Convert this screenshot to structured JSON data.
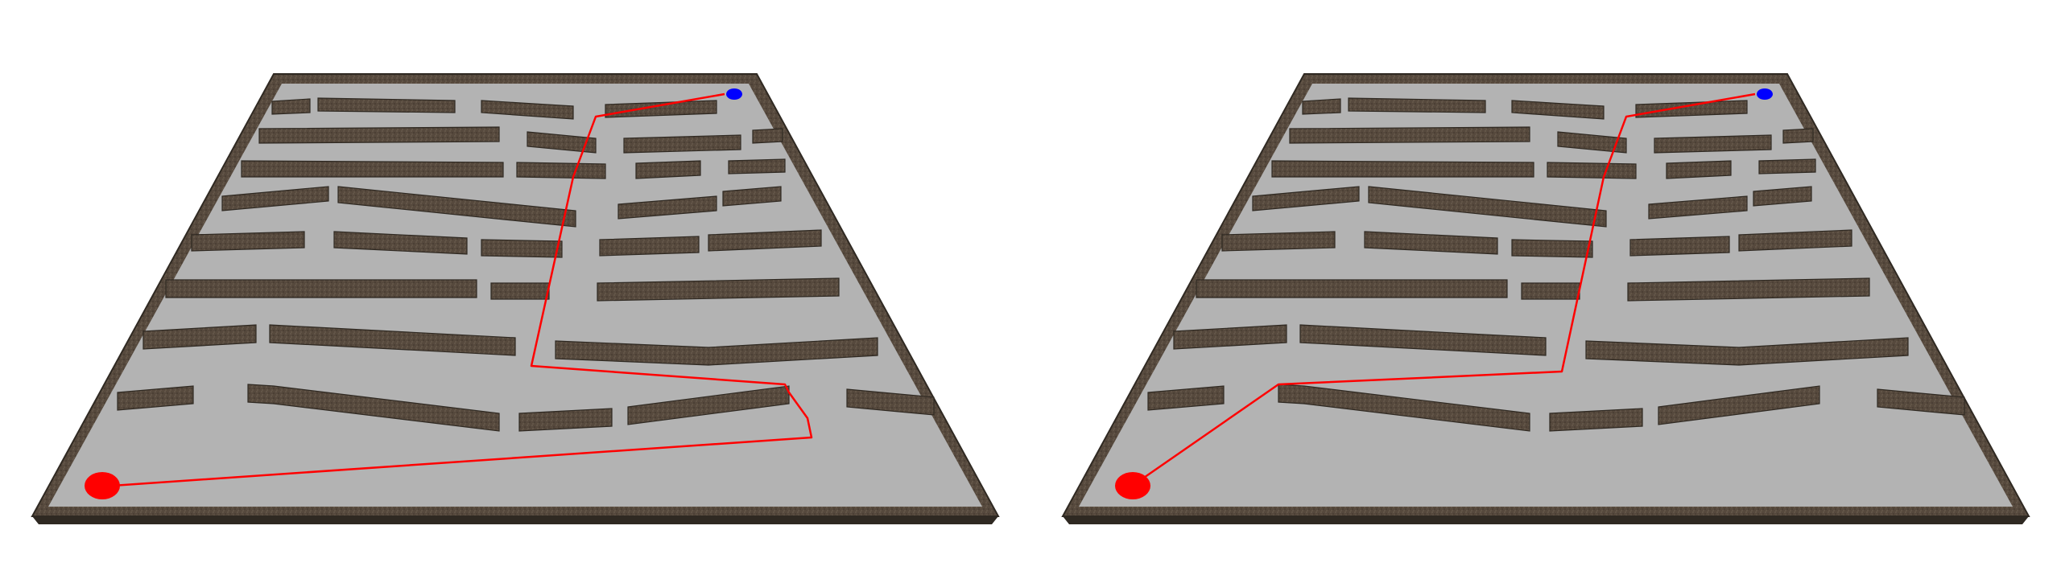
{
  "colors": {
    "background": "#ffffff",
    "floor": "#b3b3b3",
    "wall_top": "#5a4f44",
    "wall_side": "#3f362d",
    "frame_dark": "#2f2922",
    "path": "#ff0000",
    "start_marker": "#ff0000",
    "goal_marker": "#0000ff"
  },
  "panels": [
    {
      "id": "left",
      "label": ""
    },
    {
      "id": "right",
      "label": ""
    }
  ]
}
